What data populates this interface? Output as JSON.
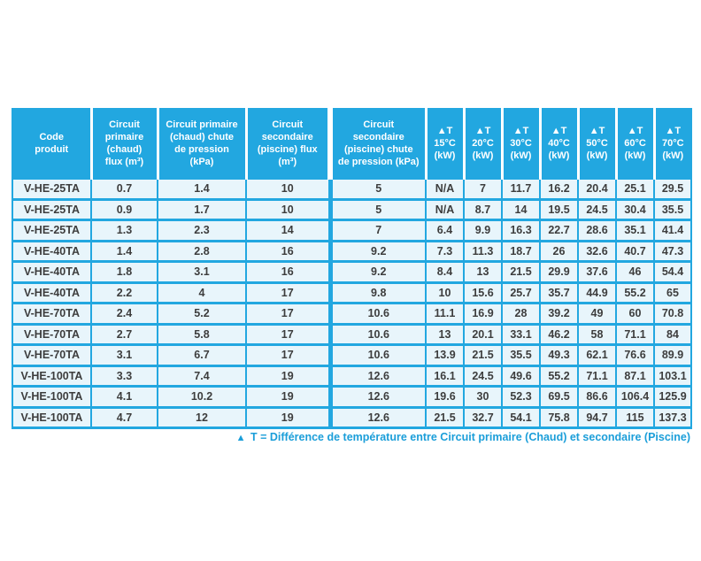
{
  "colors": {
    "accent": "#22a7e0",
    "row_background": "#e8f5fb",
    "header_text": "#ffffff",
    "body_text": "#3d3d3d",
    "footnote_text": "#1b9ed9"
  },
  "table": {
    "columns": [
      {
        "id": "code-produit",
        "label": "Code\nproduit"
      },
      {
        "id": "circuit-primaire-flux",
        "label": "Circuit\nprimaire\n(chaud)\nflux (m³)"
      },
      {
        "id": "circuit-primaire-chute",
        "label": "Circuit primaire\n(chaud) chute\nde pression\n(kPa)"
      },
      {
        "id": "circuit-secondaire-flux",
        "label": "Circuit\nsecondaire\n(piscine) flux\n(m³)"
      },
      {
        "id": "circuit-secondaire-chute",
        "label": "Circuit\nsecondaire\n(piscine) chute\nde pression (kPa)"
      },
      {
        "id": "delta-t-15",
        "label": "▲T\n15°C\n(kW)"
      },
      {
        "id": "delta-t-20",
        "label": "▲T\n20°C\n(kW)"
      },
      {
        "id": "delta-t-30",
        "label": "▲T\n30°C\n(kW)"
      },
      {
        "id": "delta-t-40",
        "label": "▲T\n40°C\n(kW)"
      },
      {
        "id": "delta-t-50",
        "label": "▲T\n50°C\n(kW)"
      },
      {
        "id": "delta-t-60",
        "label": "▲T\n60°C\n(kW)"
      },
      {
        "id": "delta-t-70",
        "label": "▲T\n70°C\n(kW)"
      }
    ],
    "rows": [
      [
        "V-HE-25TA",
        "0.7",
        "1.4",
        "10",
        "5",
        "N/A",
        "7",
        "11.7",
        "16.2",
        "20.4",
        "25.1",
        "29.5"
      ],
      [
        "V-HE-25TA",
        "0.9",
        "1.7",
        "10",
        "5",
        "N/A",
        "8.7",
        "14",
        "19.5",
        "24.5",
        "30.4",
        "35.5"
      ],
      [
        "V-HE-25TA",
        "1.3",
        "2.3",
        "14",
        "7",
        "6.4",
        "9.9",
        "16.3",
        "22.7",
        "28.6",
        "35.1",
        "41.4"
      ],
      [
        "V-HE-40TA",
        "1.4",
        "2.8",
        "16",
        "9.2",
        "7.3",
        "11.3",
        "18.7",
        "26",
        "32.6",
        "40.7",
        "47.3"
      ],
      [
        "V-HE-40TA",
        "1.8",
        "3.1",
        "16",
        "9.2",
        "8.4",
        "13",
        "21.5",
        "29.9",
        "37.6",
        "46",
        "54.4"
      ],
      [
        "V-HE-40TA",
        "2.2",
        "4",
        "17",
        "9.8",
        "10",
        "15.6",
        "25.7",
        "35.7",
        "44.9",
        "55.2",
        "65"
      ],
      [
        "V-HE-70TA",
        "2.4",
        "5.2",
        "17",
        "10.6",
        "11.1",
        "16.9",
        "28",
        "39.2",
        "49",
        "60",
        "70.8"
      ],
      [
        "V-HE-70TA",
        "2.7",
        "5.8",
        "17",
        "10.6",
        "13",
        "20.1",
        "33.1",
        "46.2",
        "58",
        "71.1",
        "84"
      ],
      [
        "V-HE-70TA",
        "3.1",
        "6.7",
        "17",
        "10.6",
        "13.9",
        "21.5",
        "35.5",
        "49.3",
        "62.1",
        "76.6",
        "89.9"
      ],
      [
        "V-HE-100TA",
        "3.3",
        "7.4",
        "19",
        "12.6",
        "16.1",
        "24.5",
        "49.6",
        "55.2",
        "71.1",
        "87.1",
        "103.1"
      ],
      [
        "V-HE-100TA",
        "4.1",
        "10.2",
        "19",
        "12.6",
        "19.6",
        "30",
        "52.3",
        "69.5",
        "86.6",
        "106.4",
        "125.9"
      ],
      [
        "V-HE-100TA",
        "4.7",
        "12",
        "19",
        "12.6",
        "21.5",
        "32.7",
        "54.1",
        "75.8",
        "94.7",
        "115",
        "137.3"
      ]
    ]
  },
  "footnote": {
    "triangle": "▲",
    "text": "T = Différence de température entre Circuit primaire (Chaud) et secondaire (Piscine)"
  }
}
